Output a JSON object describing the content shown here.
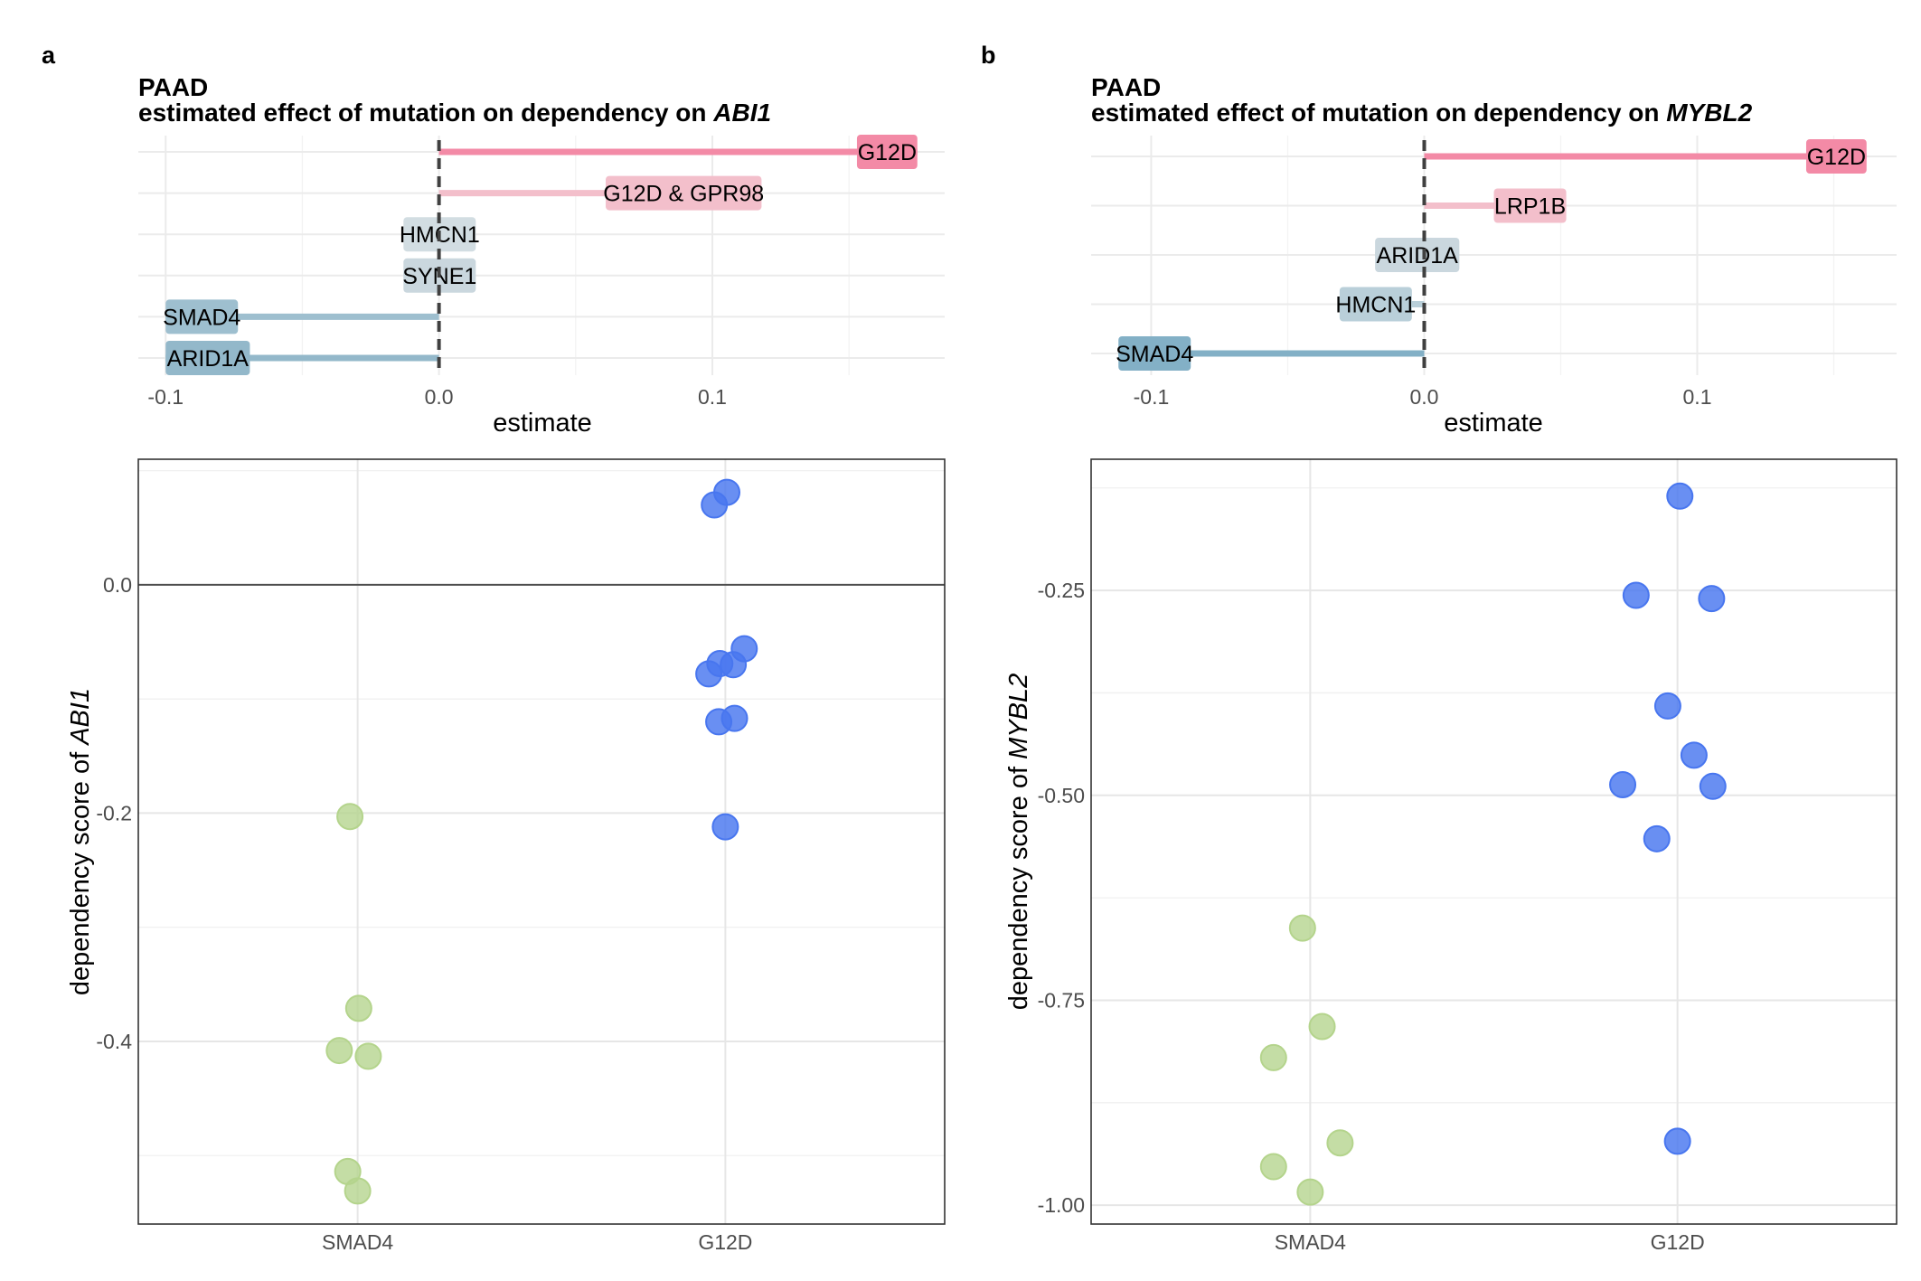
{
  "panels": [
    {
      "letter": "a",
      "title": "PAAD",
      "subtitle_prefix": "estimated effect of mutation on dependency on ",
      "gene": "ABI1",
      "chart_data": [
        {
          "type": "bar",
          "orientation": "horizontal",
          "xlabel": "estimate",
          "xlim": [
            -0.11,
            0.185
          ],
          "xticks": [
            -0.1,
            0.0,
            0.1
          ],
          "xtick_labels": [
            "-0.1",
            "0.0",
            "0.1"
          ],
          "zero_line": "dashed",
          "grid": true,
          "categories": [
            "G12D",
            "G12D & GPR98",
            "HMCN1",
            "SYNE1",
            "SMAD4",
            "ARID1A"
          ],
          "values": [
            0.175,
            0.118,
            -0.013,
            -0.013,
            -0.1,
            -0.1
          ],
          "colors": [
            "#f38aa6",
            "#f3bfcb",
            "#d2dde2",
            "#cad7de",
            "#9ebfcf",
            "#93b8ca"
          ]
        },
        {
          "type": "scatter",
          "categories": [
            "SMAD4",
            "G12D"
          ],
          "ylabel_prefix": "dependency score of ",
          "ylabel_gene": "ABI1",
          "ylim": [
            -0.56,
            0.11
          ],
          "yticks": [
            0.0,
            -0.2,
            -0.4
          ],
          "ytick_labels": [
            "0.0",
            "-0.2",
            "-0.4"
          ],
          "hline": 0.0,
          "grid": true,
          "series": [
            {
              "category": "SMAD4",
              "color": "#b4d48c",
              "points": [
                {
                  "x": -0.042,
                  "y": -0.203
                },
                {
                  "x": 0.006,
                  "y": -0.371
                },
                {
                  "x": -0.1,
                  "y": -0.408
                },
                {
                  "x": 0.058,
                  "y": -0.413
                },
                {
                  "x": -0.054,
                  "y": -0.514
                },
                {
                  "x": 0.0,
                  "y": -0.531
                }
              ]
            },
            {
              "category": "G12D",
              "color": "#4876ef",
              "points": [
                {
                  "x": -0.06,
                  "y": 0.07
                },
                {
                  "x": 0.008,
                  "y": 0.081
                },
                {
                  "x": 0.103,
                  "y": -0.056
                },
                {
                  "x": -0.09,
                  "y": -0.078
                },
                {
                  "x": -0.03,
                  "y": -0.069
                },
                {
                  "x": 0.043,
                  "y": -0.07
                },
                {
                  "x": -0.036,
                  "y": -0.12
                },
                {
                  "x": 0.05,
                  "y": -0.117
                },
                {
                  "x": 0.0,
                  "y": -0.212
                }
              ]
            }
          ]
        }
      ]
    },
    {
      "letter": "b",
      "title": "PAAD",
      "subtitle_prefix": "estimated effect of mutation on dependency on ",
      "gene": "MYBL2",
      "chart_data": [
        {
          "type": "bar",
          "orientation": "horizontal",
          "xlabel": "estimate",
          "xlim": [
            -0.122,
            0.173
          ],
          "xticks": [
            -0.1,
            0.0,
            0.1
          ],
          "xtick_labels": [
            "-0.1",
            "0.0",
            "0.1"
          ],
          "zero_line": "dashed",
          "grid": true,
          "categories": [
            "G12D",
            "LRP1B",
            "ARID1A",
            "HMCN1",
            "SMAD4"
          ],
          "values": [
            0.162,
            0.052,
            -0.018,
            -0.031,
            -0.112
          ],
          "colors": [
            "#f38aa6",
            "#f3bfcb",
            "#cad7de",
            "#b9cfd9",
            "#83b0c6"
          ]
        },
        {
          "type": "scatter",
          "categories": [
            "SMAD4",
            "G12D"
          ],
          "ylabel_prefix": "dependency score of ",
          "ylabel_gene": "MYBL2",
          "ylim": [
            -1.023,
            -0.09
          ],
          "yticks": [
            -0.25,
            -0.5,
            -0.75,
            -1.0
          ],
          "ytick_labels": [
            "-0.25",
            "-0.50",
            "-0.75",
            "-1.00"
          ],
          "grid": true,
          "series": [
            {
              "category": "SMAD4",
              "color": "#b4d48c",
              "points": [
                {
                  "x": -0.042,
                  "y": -0.662
                },
                {
                  "x": 0.065,
                  "y": -0.782
                },
                {
                  "x": -0.2,
                  "y": -0.82
                },
                {
                  "x": 0.163,
                  "y": -0.924
                },
                {
                  "x": -0.2,
                  "y": -0.953
                },
                {
                  "x": 0.0,
                  "y": -0.984
                }
              ]
            },
            {
              "category": "G12D",
              "color": "#4876ef",
              "points": [
                {
                  "x": 0.013,
                  "y": -0.135
                },
                {
                  "x": -0.226,
                  "y": -0.256
                },
                {
                  "x": 0.186,
                  "y": -0.26
                },
                {
                  "x": -0.053,
                  "y": -0.391
                },
                {
                  "x": 0.09,
                  "y": -0.451
                },
                {
                  "x": -0.299,
                  "y": -0.487
                },
                {
                  "x": 0.193,
                  "y": -0.489
                },
                {
                  "x": -0.113,
                  "y": -0.553
                },
                {
                  "x": 0.0,
                  "y": -0.922
                }
              ]
            }
          ]
        }
      ]
    }
  ]
}
